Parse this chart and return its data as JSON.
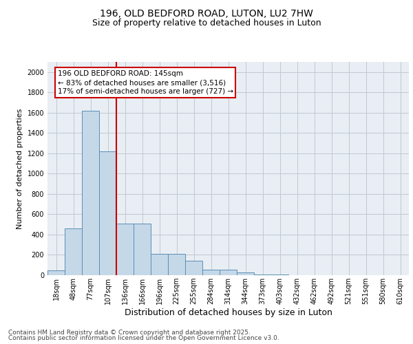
{
  "title_line1": "196, OLD BEDFORD ROAD, LUTON, LU2 7HW",
  "title_line2": "Size of property relative to detached houses in Luton",
  "xlabel": "Distribution of detached houses by size in Luton",
  "ylabel": "Number of detached properties",
  "categories": [
    "18sqm",
    "48sqm",
    "77sqm",
    "107sqm",
    "136sqm",
    "166sqm",
    "196sqm",
    "225sqm",
    "255sqm",
    "284sqm",
    "314sqm",
    "344sqm",
    "373sqm",
    "403sqm",
    "432sqm",
    "462sqm",
    "492sqm",
    "521sqm",
    "551sqm",
    "580sqm",
    "610sqm"
  ],
  "values": [
    50,
    460,
    1620,
    1220,
    510,
    510,
    210,
    210,
    140,
    55,
    55,
    30,
    10,
    5,
    2,
    1,
    0,
    0,
    0,
    0,
    0
  ],
  "bar_color": "#c5d8e8",
  "bar_edge_color": "#5a8db5",
  "vline_pos": 3.5,
  "vline_color": "#cc0000",
  "annotation_text": "196 OLD BEDFORD ROAD: 145sqm\n← 83% of detached houses are smaller (3,516)\n17% of semi-detached houses are larger (727) →",
  "annotation_box_edgecolor": "#cc0000",
  "ylim": [
    0,
    2100
  ],
  "yticks": [
    0,
    200,
    400,
    600,
    800,
    1000,
    1200,
    1400,
    1600,
    1800,
    2000
  ],
  "grid_color": "#c0c8d0",
  "plot_bg_color": "#e8eef4",
  "footer_line1": "Contains HM Land Registry data © Crown copyright and database right 2025.",
  "footer_line2": "Contains public sector information licensed under the Open Government Licence v3.0.",
  "title_fontsize": 10,
  "subtitle_fontsize": 9,
  "ylabel_fontsize": 8,
  "xlabel_fontsize": 9,
  "tick_fontsize": 7,
  "annot_fontsize": 7.5,
  "footer_fontsize": 6.5
}
